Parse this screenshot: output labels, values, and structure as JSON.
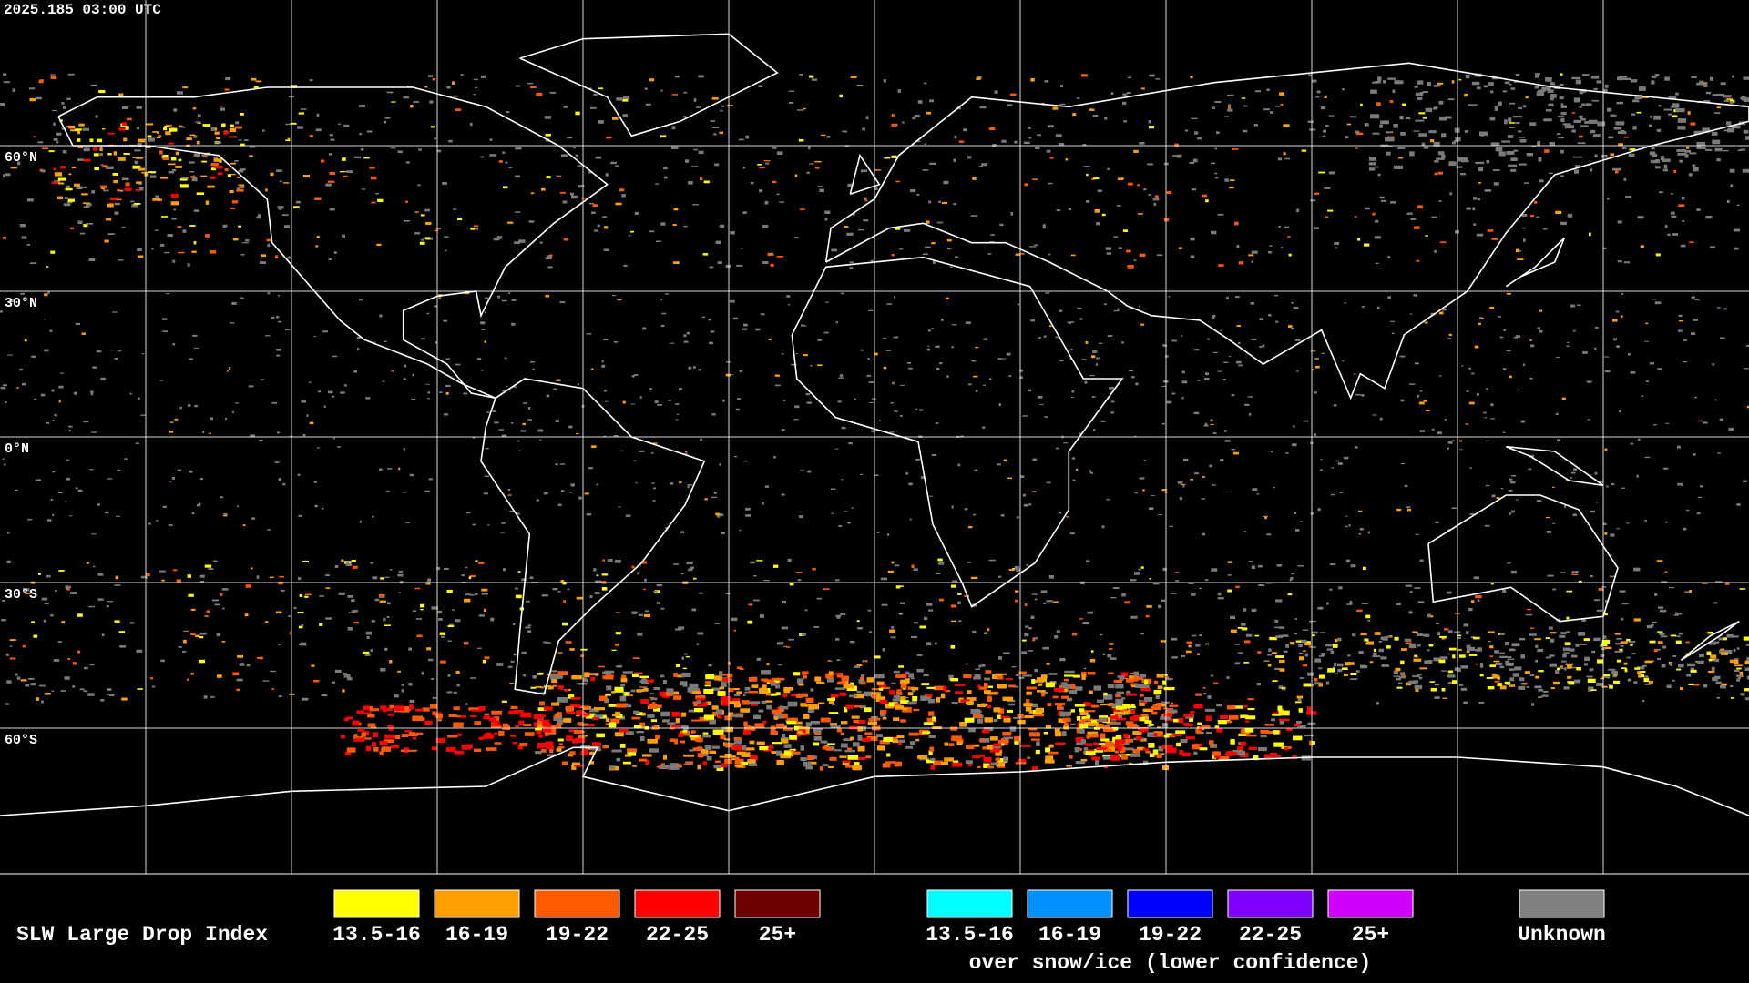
{
  "header": {
    "timestamp": "2025.185 03:00 UTC"
  },
  "map": {
    "latitude_labels": [
      "60°N",
      "30°N",
      "0°N",
      "30°S",
      "60°S"
    ]
  },
  "legend": {
    "title": "SLW Large Drop Index",
    "groups": [
      {
        "items": [
          {
            "label": "13.5-16",
            "color": "#ffff00"
          },
          {
            "label": "16-19",
            "color": "#ffa000"
          },
          {
            "label": "19-22",
            "color": "#ff5a00"
          },
          {
            "label": "22-25",
            "color": "#ff0000"
          },
          {
            "label": "25+",
            "color": "#6e0000"
          }
        ]
      },
      {
        "items": [
          {
            "label": "13.5-16",
            "color": "#00ffff"
          },
          {
            "label": "16-19",
            "color": "#0090ff"
          },
          {
            "label": "19-22",
            "color": "#0000ff"
          },
          {
            "label": "22-25",
            "color": "#8000ff"
          },
          {
            "label": "25+",
            "color": "#d000ff"
          }
        ],
        "caption": "over snow/ice (lower confidence)"
      },
      {
        "items": [
          {
            "label": "Unknown",
            "color": "#808080"
          }
        ]
      }
    ]
  }
}
